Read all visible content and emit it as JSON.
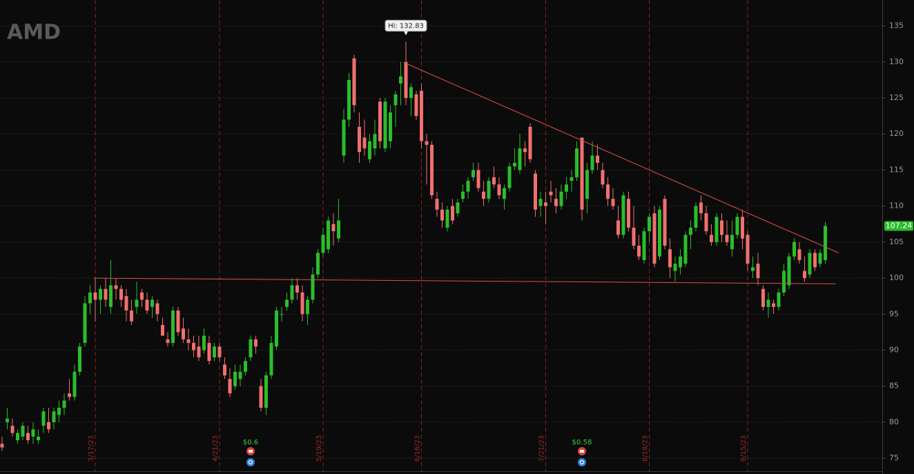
{
  "chart_data": {
    "type": "candlestick",
    "title": "AMD",
    "high_label": "Hi: 132.83",
    "up_color": "#2bbd2b",
    "down_color": "#f0706e",
    "trendline_color": "#e0504a",
    "grid": true,
    "ylim": [
      73,
      138.6
    ],
    "yticks": [
      75,
      80,
      85,
      90,
      95,
      100,
      105,
      110,
      115,
      120,
      125,
      130,
      135
    ],
    "xticks": [
      {
        "value": 18,
        "label": "3/17/23"
      },
      {
        "value": 42,
        "label": "4/21/23"
      },
      {
        "value": 62,
        "label": "5/19/23"
      },
      {
        "value": 81,
        "label": "6/16/23"
      },
      {
        "value": 105,
        "label": "7/21/23"
      },
      {
        "value": 125,
        "label": "8/18/23"
      },
      {
        "value": 144,
        "label": "9/15/23"
      }
    ],
    "events": [
      {
        "index": 48,
        "label": "$0.6"
      },
      {
        "index": 112,
        "label": "$0.58"
      }
    ],
    "trendlines": [
      {
        "x": [
          78,
          161.6
        ],
        "y": [
          129.8,
          103.5
        ]
      },
      {
        "x": [
          17.7,
          161
        ],
        "y": [
          100,
          99.2
        ]
      }
    ],
    "candles": [
      [
        77,
        78,
        76,
        76.5
      ],
      [
        80,
        82,
        79,
        80.5
      ],
      [
        79.5,
        80.5,
        78,
        78.5
      ],
      [
        77.5,
        79,
        77,
        78.5
      ],
      [
        78,
        80,
        77.5,
        79.5
      ],
      [
        78.5,
        79.5,
        77,
        77.5
      ],
      [
        78,
        80,
        77,
        79
      ],
      [
        77.5,
        79,
        77,
        78
      ],
      [
        79.5,
        82,
        78.5,
        81.5
      ],
      [
        80,
        82,
        78.5,
        79
      ],
      [
        80,
        82,
        79,
        81.5
      ],
      [
        81,
        83,
        80,
        82
      ],
      [
        82,
        84,
        81,
        83
      ],
      [
        84,
        86,
        83,
        83.5
      ],
      [
        83.5,
        88,
        83,
        87
      ],
      [
        87,
        91,
        86.5,
        90.5
      ],
      [
        91,
        97.5,
        90.5,
        96.5
      ],
      [
        96.5,
        99,
        95,
        98
      ],
      [
        98,
        100,
        94,
        97
      ],
      [
        97,
        99,
        95,
        98.5
      ],
      [
        98.5,
        100,
        96,
        97
      ],
      [
        96,
        102.5,
        95,
        99
      ],
      [
        99,
        100,
        97,
        98.5
      ],
      [
        98.5,
        99,
        96,
        97
      ],
      [
        97.5,
        98.5,
        94,
        95.5
      ],
      [
        95.5,
        97,
        93.5,
        94
      ],
      [
        96,
        99.5,
        95,
        97
      ],
      [
        98,
        98.5,
        96,
        97
      ],
      [
        97,
        98,
        95,
        95.5
      ],
      [
        96,
        97.5,
        94.5,
        97
      ],
      [
        96.5,
        97,
        94,
        95
      ],
      [
        93.5,
        94.5,
        92,
        92
      ],
      [
        91.5,
        92.5,
        90.5,
        91
      ],
      [
        91,
        96,
        90.5,
        95.5
      ],
      [
        95.5,
        96,
        92,
        92.5
      ],
      [
        93,
        94.5,
        91,
        91.5
      ],
      [
        91.5,
        93,
        90,
        91
      ],
      [
        91,
        92,
        89,
        90
      ],
      [
        90.5,
        92,
        88.5,
        89
      ],
      [
        90,
        93,
        89.5,
        92
      ],
      [
        91,
        92,
        88,
        88.5
      ],
      [
        89,
        91,
        88.5,
        90.5
      ],
      [
        90.5,
        91,
        88.5,
        89
      ],
      [
        88,
        89,
        86,
        86.5
      ],
      [
        86,
        87.5,
        83.5,
        84
      ],
      [
        85,
        88,
        84.5,
        87
      ],
      [
        86,
        88,
        85,
        87
      ],
      [
        87,
        89,
        86.5,
        88.5
      ],
      [
        89,
        92,
        88.5,
        91.5
      ],
      [
        91.5,
        92,
        89.5,
        90.5
      ],
      [
        85,
        86,
        81.5,
        82
      ],
      [
        82,
        87,
        81,
        86.5
      ],
      [
        86.5,
        92,
        86,
        91
      ],
      [
        90.5,
        96,
        90,
        95.5
      ],
      [
        95,
        96,
        94,
        95
      ],
      [
        96,
        98,
        95.5,
        97
      ],
      [
        97,
        100,
        96.5,
        99
      ],
      [
        99,
        100,
        97,
        98
      ],
      [
        98,
        99,
        94,
        95
      ],
      [
        95,
        97.5,
        93.5,
        97
      ],
      [
        97,
        101.5,
        96.5,
        100.5
      ],
      [
        100.5,
        104,
        100,
        103.5
      ],
      [
        103.5,
        107,
        103,
        106
      ],
      [
        104,
        108.5,
        103.5,
        108
      ],
      [
        107.5,
        109,
        104.5,
        106.5
      ],
      [
        105.5,
        111,
        105,
        108
      ],
      [
        117,
        123.5,
        116,
        122
      ],
      [
        122,
        128.5,
        121,
        127.5
      ],
      [
        130.5,
        131,
        123,
        124
      ],
      [
        121,
        123,
        116,
        117.5
      ],
      [
        119.5,
        122,
        117,
        118
      ],
      [
        116.5,
        120,
        116,
        119
      ],
      [
        118,
        122,
        117,
        120
      ],
      [
        124.5,
        125,
        118,
        119
      ],
      [
        118,
        125,
        117.5,
        124.5
      ],
      [
        119,
        124,
        118,
        123
      ],
      [
        124,
        126,
        121,
        125.5
      ],
      [
        127,
        130,
        124,
        128
      ],
      [
        130,
        132.83,
        124,
        125
      ],
      [
        125,
        127,
        122.5,
        126.5
      ],
      [
        125.5,
        126,
        122,
        122.5
      ],
      [
        126,
        127,
        118,
        119
      ],
      [
        119,
        120,
        113,
        118.5
      ],
      [
        118.5,
        119,
        111,
        111.5
      ],
      [
        111,
        112,
        108.5,
        109.5
      ],
      [
        109.5,
        110.5,
        107,
        108
      ],
      [
        107,
        110,
        106.5,
        109.5
      ],
      [
        110,
        111,
        107.5,
        108
      ],
      [
        109,
        111,
        108.5,
        110.5
      ],
      [
        111,
        113,
        110.5,
        112
      ],
      [
        112,
        114,
        111,
        113.5
      ],
      [
        114,
        116,
        113.5,
        115
      ],
      [
        115,
        116,
        112,
        112.5
      ],
      [
        112,
        113.5,
        110,
        111
      ],
      [
        111,
        114,
        110.5,
        113.5
      ],
      [
        114,
        115.5,
        112.5,
        113
      ],
      [
        113,
        114,
        111,
        111.5
      ],
      [
        111,
        113,
        109.5,
        112.5
      ],
      [
        112.5,
        116,
        112,
        115.5
      ],
      [
        115.5,
        118,
        115,
        116
      ],
      [
        115,
        120,
        114.5,
        118
      ],
      [
        118,
        119,
        115.5,
        117.5
      ],
      [
        121,
        121.5,
        116,
        116.5
      ],
      [
        114.5,
        115,
        108.5,
        109.5
      ],
      [
        110,
        112,
        108.5,
        111
      ],
      [
        110.5,
        112,
        107.5,
        110
      ],
      [
        112,
        113.5,
        110.5,
        111.5
      ],
      [
        111,
        112.5,
        109,
        110
      ],
      [
        110,
        113,
        109.5,
        112
      ],
      [
        112,
        114,
        111,
        113
      ],
      [
        113.5,
        115,
        112,
        114
      ],
      [
        114,
        119,
        113.5,
        118
      ],
      [
        119.5,
        119.5,
        108,
        109.5
      ],
      [
        111,
        116,
        109,
        115
      ],
      [
        115,
        119,
        114.5,
        117
      ],
      [
        117,
        118.5,
        115,
        116
      ],
      [
        115,
        116,
        112.5,
        113
      ],
      [
        113,
        114,
        110,
        111
      ],
      [
        111,
        112.5,
        109.5,
        110
      ],
      [
        108,
        110,
        105.5,
        106
      ],
      [
        106,
        112,
        105.5,
        111.5
      ],
      [
        111,
        112,
        106.5,
        107
      ],
      [
        107,
        110,
        104,
        104.5
      ],
      [
        104.5,
        106,
        102.5,
        103
      ],
      [
        102.5,
        107,
        102,
        106.5
      ],
      [
        106.5,
        109,
        105,
        108.5
      ],
      [
        109,
        110,
        101.5,
        102
      ],
      [
        103,
        110,
        102.5,
        109.5
      ],
      [
        111,
        111.5,
        104,
        104.5
      ],
      [
        104,
        105.5,
        100,
        101.5
      ],
      [
        101,
        103,
        99.5,
        102
      ],
      [
        101.5,
        104,
        100.5,
        103
      ],
      [
        102,
        106.5,
        101.5,
        106
      ],
      [
        106,
        108,
        104,
        107
      ],
      [
        107,
        110.5,
        106.5,
        110
      ],
      [
        110.5,
        111.5,
        108,
        109
      ],
      [
        109,
        110,
        106,
        106.5
      ],
      [
        106,
        107.5,
        104.5,
        105
      ],
      [
        105,
        109,
        104.5,
        108.5
      ],
      [
        108,
        109,
        105,
        106
      ],
      [
        106,
        108,
        104.5,
        105
      ],
      [
        104,
        108,
        103,
        106
      ],
      [
        106,
        109,
        105.5,
        108.5
      ],
      [
        108.5,
        109.5,
        104,
        105.5
      ],
      [
        106,
        106.5,
        101,
        102
      ],
      [
        101,
        103,
        100,
        101.5
      ],
      [
        102,
        103.5,
        99,
        100
      ],
      [
        98.5,
        99,
        95.5,
        96
      ],
      [
        96,
        98,
        94.5,
        97
      ],
      [
        96.5,
        97,
        95,
        96
      ],
      [
        96,
        98.5,
        95.5,
        98
      ],
      [
        98,
        102,
        97.5,
        101
      ],
      [
        99,
        103.5,
        98.5,
        103
      ],
      [
        103,
        105.5,
        102.5,
        105
      ],
      [
        104,
        105,
        102,
        102.5
      ],
      [
        101,
        103,
        99.5,
        100
      ],
      [
        100.5,
        104,
        100,
        103.5
      ],
      [
        103.5,
        104,
        101,
        101.5
      ],
      [
        102,
        104,
        101.5,
        103.5
      ],
      [
        102.5,
        107.8,
        102,
        107.24
      ]
    ]
  }
}
